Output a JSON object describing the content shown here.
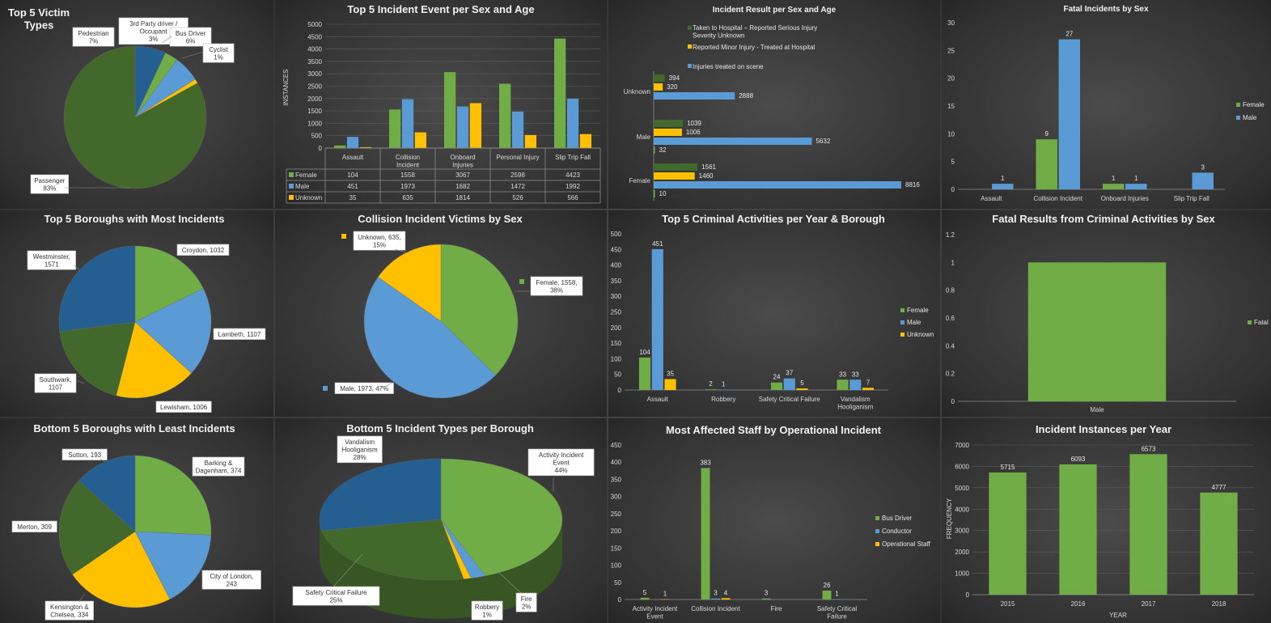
{
  "colors": {
    "green": "#70ad47",
    "blue": "#5b9bd5",
    "yellow": "#ffc000",
    "dark_green": "#43682b",
    "dark_blue": "#255e91",
    "dark_green2": "#375623"
  },
  "chart_data": [
    {
      "id": "victim-types",
      "type": "pie",
      "title": "Top 5 Victim\nTypes",
      "slices": [
        {
          "label": "Passenger",
          "value": 83,
          "pct": "83%",
          "color": "#43682b"
        },
        {
          "label": "Pedestrian",
          "value": 7,
          "pct": "7%",
          "color": "#255e91"
        },
        {
          "label": "3rd Party driver / Occupant",
          "value": 3,
          "pct": "3%",
          "color": "#70ad47"
        },
        {
          "label": "Bus Driver",
          "value": 6,
          "pct": "6%",
          "color": "#5b9bd5"
        },
        {
          "label": "Cyclist",
          "value": 1,
          "pct": "1%",
          "color": "#ffc000"
        }
      ]
    },
    {
      "id": "incident-event",
      "type": "bar",
      "title": "Top 5 Incident Event per Sex and Age",
      "ylabel": "INSTANCES",
      "ylim": [
        0,
        5000
      ],
      "yticks": [
        "0",
        "500",
        "1000",
        "1500",
        "2000",
        "2500",
        "3000",
        "3500",
        "4000",
        "4500",
        "5000"
      ],
      "categories": [
        "Assault",
        "Collision Incident",
        "Onboard Injuries",
        "Personal Injury",
        "Slip Trip Fall"
      ],
      "series": [
        {
          "name": "Female",
          "color": "#70ad47",
          "values": [
            104,
            1558,
            3067,
            2598,
            4423
          ]
        },
        {
          "name": "Male",
          "color": "#5b9bd5",
          "values": [
            451,
            1973,
            1682,
            1472,
            1992
          ]
        },
        {
          "name": "Unknown",
          "color": "#ffc000",
          "values": [
            35,
            635,
            1814,
            526,
            566
          ]
        }
      ]
    },
    {
      "id": "incident-result",
      "type": "bar-horizontal",
      "title": "Incident Result per Sex and Age",
      "categories": [
        "Unknown",
        "Male",
        "Female"
      ],
      "xlim": [
        0,
        8816
      ],
      "series": [
        {
          "name": "Taken to Hospital – Reported Serious Injury or Severity Unknown",
          "color": "#43682b",
          "values": [
            394,
            1039,
            1561
          ]
        },
        {
          "name": "Reported Minor Injury - Treated at Hospital",
          "color": "#ffc000",
          "values": [
            320,
            1006,
            1460
          ]
        },
        {
          "name": "Injuries treated on scene",
          "color": "#5b9bd5",
          "values": [
            2888,
            5632,
            8816
          ]
        },
        {
          "name": "",
          "color": "#70ad47",
          "values": [
            null,
            32,
            10
          ]
        }
      ]
    },
    {
      "id": "fatal-by-sex",
      "type": "bar",
      "title": "Fatal Incidents by Sex",
      "ylim": [
        0,
        30
      ],
      "yticks": [
        "0",
        "5",
        "10",
        "15",
        "20",
        "25",
        "30"
      ],
      "categories": [
        "Assault",
        "Collision Incident",
        "Onboard Injuries",
        "Slip Trip Fall"
      ],
      "series": [
        {
          "name": "Female",
          "color": "#70ad47",
          "values": [
            null,
            9,
            1,
            null
          ]
        },
        {
          "name": "Male",
          "color": "#5b9bd5",
          "values": [
            1,
            27,
            1,
            3
          ]
        }
      ]
    },
    {
      "id": "top-boroughs",
      "type": "pie",
      "title": "Top 5 Boroughs with Most Incidents",
      "slices": [
        {
          "label": "Croydon, 1032",
          "value": 1032,
          "color": "#70ad47"
        },
        {
          "label": "Lambeth, 1107",
          "value": 1107,
          "color": "#5b9bd5"
        },
        {
          "label": "Lewisham, 1006",
          "value": 1006,
          "color": "#ffc000"
        },
        {
          "label": "Southwark,\n1107",
          "value": 1107,
          "color": "#43682b"
        },
        {
          "label": "Westminster,\n1571",
          "value": 1571,
          "color": "#255e91"
        }
      ]
    },
    {
      "id": "collision-victims",
      "type": "pie",
      "title": "Collision Incident Victims by Sex",
      "slices": [
        {
          "label": "Female, 1558,\n38%",
          "value": 1558,
          "color": "#70ad47"
        },
        {
          "label": "Male, 1973, 47%",
          "value": 1973,
          "color": "#5b9bd5"
        },
        {
          "label": "Unknown, 635,\n15%",
          "value": 635,
          "color": "#ffc000"
        }
      ]
    },
    {
      "id": "criminal-activities",
      "type": "bar",
      "title": "Top 5 Criminal Activities per Year & Borough",
      "ylim": [
        0,
        500
      ],
      "yticks": [
        "0",
        "50",
        "100",
        "150",
        "200",
        "250",
        "300",
        "350",
        "400",
        "450",
        "500"
      ],
      "categories": [
        "Assault",
        "Robbery",
        "Safety Critical Failure",
        "Vandalism\nHooliganism"
      ],
      "series": [
        {
          "name": "Female",
          "color": "#70ad47",
          "values": [
            104,
            2,
            24,
            33
          ]
        },
        {
          "name": "Male",
          "color": "#5b9bd5",
          "values": [
            451,
            1,
            37,
            33
          ]
        },
        {
          "name": "Unknown",
          "color": "#ffc000",
          "values": [
            35,
            null,
            5,
            7
          ]
        }
      ]
    },
    {
      "id": "fatal-criminal",
      "type": "bar",
      "title": "Fatal Results from Criminal Activities by Sex",
      "ylim": [
        0,
        1.2
      ],
      "yticks": [
        "0",
        "0.2",
        "0.4",
        "0.6",
        "0.8",
        "1",
        "1.2"
      ],
      "categories": [
        "Male"
      ],
      "series": [
        {
          "name": "Fatal",
          "color": "#70ad47",
          "values": [
            1
          ]
        }
      ]
    },
    {
      "id": "bottom-boroughs",
      "type": "pie",
      "title": "Bottom 5 Boroughs with Least Incidents",
      "slices": [
        {
          "label": "Barking &\nDagenham, 374",
          "value": 374,
          "color": "#70ad47"
        },
        {
          "label": "City of London,\n243",
          "value": 243,
          "color": "#5b9bd5"
        },
        {
          "label": "Kensington &\nChelsea, 334",
          "value": 334,
          "color": "#ffc000"
        },
        {
          "label": "Merton, 309",
          "value": 309,
          "color": "#43682b"
        },
        {
          "label": "Sutton, 193",
          "value": 193,
          "color": "#255e91"
        }
      ]
    },
    {
      "id": "bottom-incident-types",
      "type": "pie",
      "title": "Bottom 5 Incident Types per Borough",
      "slices": [
        {
          "label": "Activity Incident\nEvent\n44%",
          "value": 44,
          "color": "#70ad47"
        },
        {
          "label": "Fire\n2%",
          "value": 2,
          "color": "#5b9bd5"
        },
        {
          "label": "Robbery\n1%",
          "value": 1,
          "color": "#ffc000"
        },
        {
          "label": "Safety Critical Failure\n25%",
          "value": 25,
          "color": "#43682b"
        },
        {
          "label": "Vandalism\nHooliganism\n28%",
          "value": 28,
          "color": "#255e91"
        }
      ]
    },
    {
      "id": "affected-staff",
      "type": "bar",
      "title": "Most Affected Staff by Operational Incident",
      "ylim": [
        0,
        450
      ],
      "yticks": [
        "0",
        "50",
        "100",
        "150",
        "200",
        "250",
        "300",
        "350",
        "400",
        "450"
      ],
      "categories": [
        "Activity Incident\nEvent",
        "Collision Incident",
        "Fire",
        "Safety Critical\nFailure"
      ],
      "series": [
        {
          "name": "Bus Driver",
          "color": "#70ad47",
          "values": [
            5,
            383,
            3,
            26
          ]
        },
        {
          "name": "Conductor",
          "color": "#5b9bd5",
          "values": [
            null,
            3,
            null,
            1
          ]
        },
        {
          "name": "Operational Staff",
          "color": "#ffc000",
          "values": [
            1,
            4,
            null,
            null
          ]
        }
      ]
    },
    {
      "id": "instances-per-year",
      "type": "bar",
      "title": "Incident Instances per Year",
      "xlabel": "YEAR",
      "ylabel": "FREQUENCY",
      "ylim": [
        0,
        7000
      ],
      "yticks": [
        "0",
        "1000",
        "2000",
        "3000",
        "4000",
        "5000",
        "6000",
        "7000"
      ],
      "categories": [
        "2015",
        "2016",
        "2017",
        "2018"
      ],
      "series": [
        {
          "name": "",
          "color": "#70ad47",
          "values": [
            5715,
            6093,
            6573,
            4777
          ]
        }
      ]
    }
  ]
}
